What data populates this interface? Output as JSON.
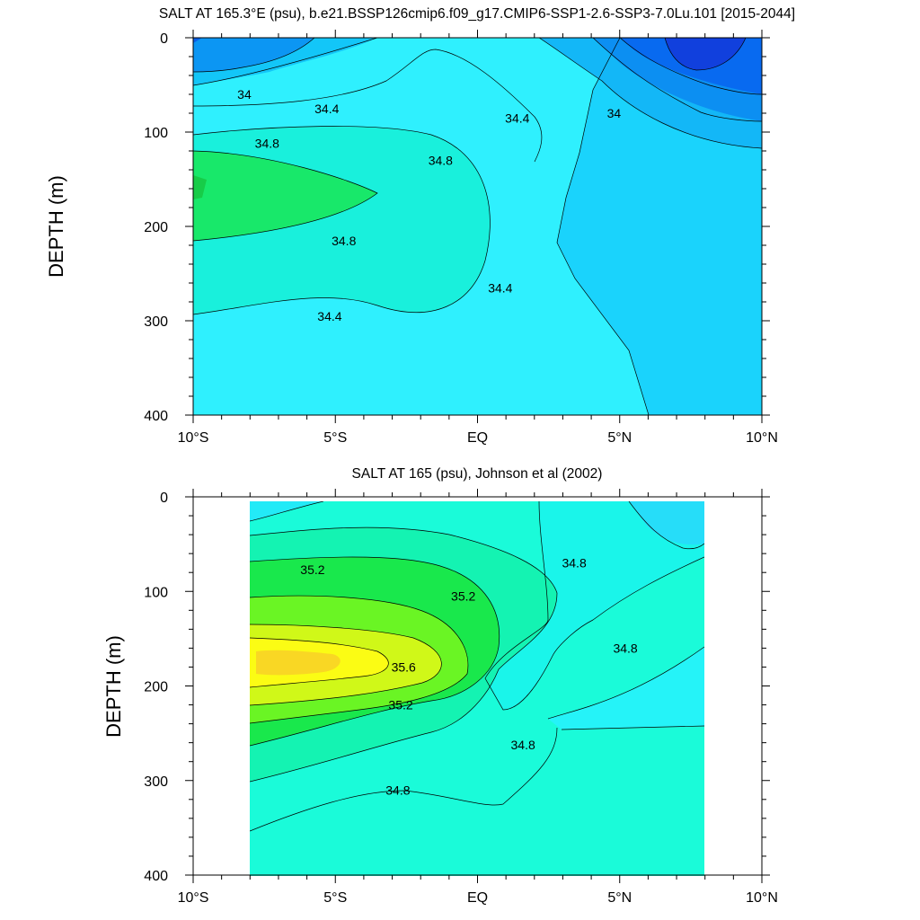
{
  "chart_data": [
    {
      "type": "contour",
      "title": "SALT AT 165.3°E (psu), b.e21.BSSP126cmip6.f09_g17.CMIP6-SSP1-2.6-SSP3-7.0Lu.101 [2015-2044]",
      "xlabel": "",
      "ylabel": "DEPTH (m)",
      "xlim": [
        -10,
        10
      ],
      "ylim": [
        0,
        400
      ],
      "y_inverted": true,
      "x_ticks": [
        {
          "v": -10,
          "label": "10°S"
        },
        {
          "v": -5,
          "label": "5°S"
        },
        {
          "v": 0,
          "label": "EQ"
        },
        {
          "v": 5,
          "label": "5°N"
        },
        {
          "v": 10,
          "label": "10°N"
        }
      ],
      "y_ticks": [
        0,
        100,
        200,
        300,
        400
      ],
      "contour_labels": [
        {
          "text": "34",
          "lat": -8.2,
          "depth": 60
        },
        {
          "text": "34.4",
          "lat": -5.3,
          "depth": 75
        },
        {
          "text": "34.8",
          "lat": -7.4,
          "depth": 112
        },
        {
          "text": "34.4",
          "lat": 1.4,
          "depth": 85
        },
        {
          "text": "34.8",
          "lat": -1.3,
          "depth": 130
        },
        {
          "text": "34",
          "lat": 4.8,
          "depth": 80
        },
        {
          "text": "34.8",
          "lat": -4.7,
          "depth": 215
        },
        {
          "text": "34.4",
          "lat": 0.8,
          "depth": 265
        },
        {
          "text": "34.4",
          "lat": -5.2,
          "depth": 295
        }
      ]
    },
    {
      "type": "contour",
      "title": "SALT AT 165 (psu), Johnson et al (2002)",
      "xlabel": "",
      "ylabel": "DEPTH (m)",
      "xlim": [
        -10,
        10
      ],
      "ylim": [
        0,
        400
      ],
      "y_inverted": true,
      "data_lon_range": [
        -8,
        8
      ],
      "x_ticks": [
        {
          "v": -10,
          "label": "10°S"
        },
        {
          "v": -5,
          "label": "5°S"
        },
        {
          "v": 0,
          "label": "EQ"
        },
        {
          "v": 5,
          "label": "5°N"
        },
        {
          "v": 10,
          "label": "10°N"
        }
      ],
      "y_ticks": [
        0,
        100,
        200,
        300,
        400
      ],
      "contour_labels": [
        {
          "text": "35.2",
          "lat": -5.8,
          "depth": 77
        },
        {
          "text": "35.2",
          "lat": -0.5,
          "depth": 105
        },
        {
          "text": "34.8",
          "lat": 3.4,
          "depth": 70
        },
        {
          "text": "35.6",
          "lat": -2.6,
          "depth": 180
        },
        {
          "text": "34.8",
          "lat": 5.2,
          "depth": 160
        },
        {
          "text": "35.2",
          "lat": -2.7,
          "depth": 220
        },
        {
          "text": "34.8",
          "lat": 1.6,
          "depth": 262
        },
        {
          "text": "34.8",
          "lat": -2.8,
          "depth": 310
        }
      ]
    }
  ]
}
